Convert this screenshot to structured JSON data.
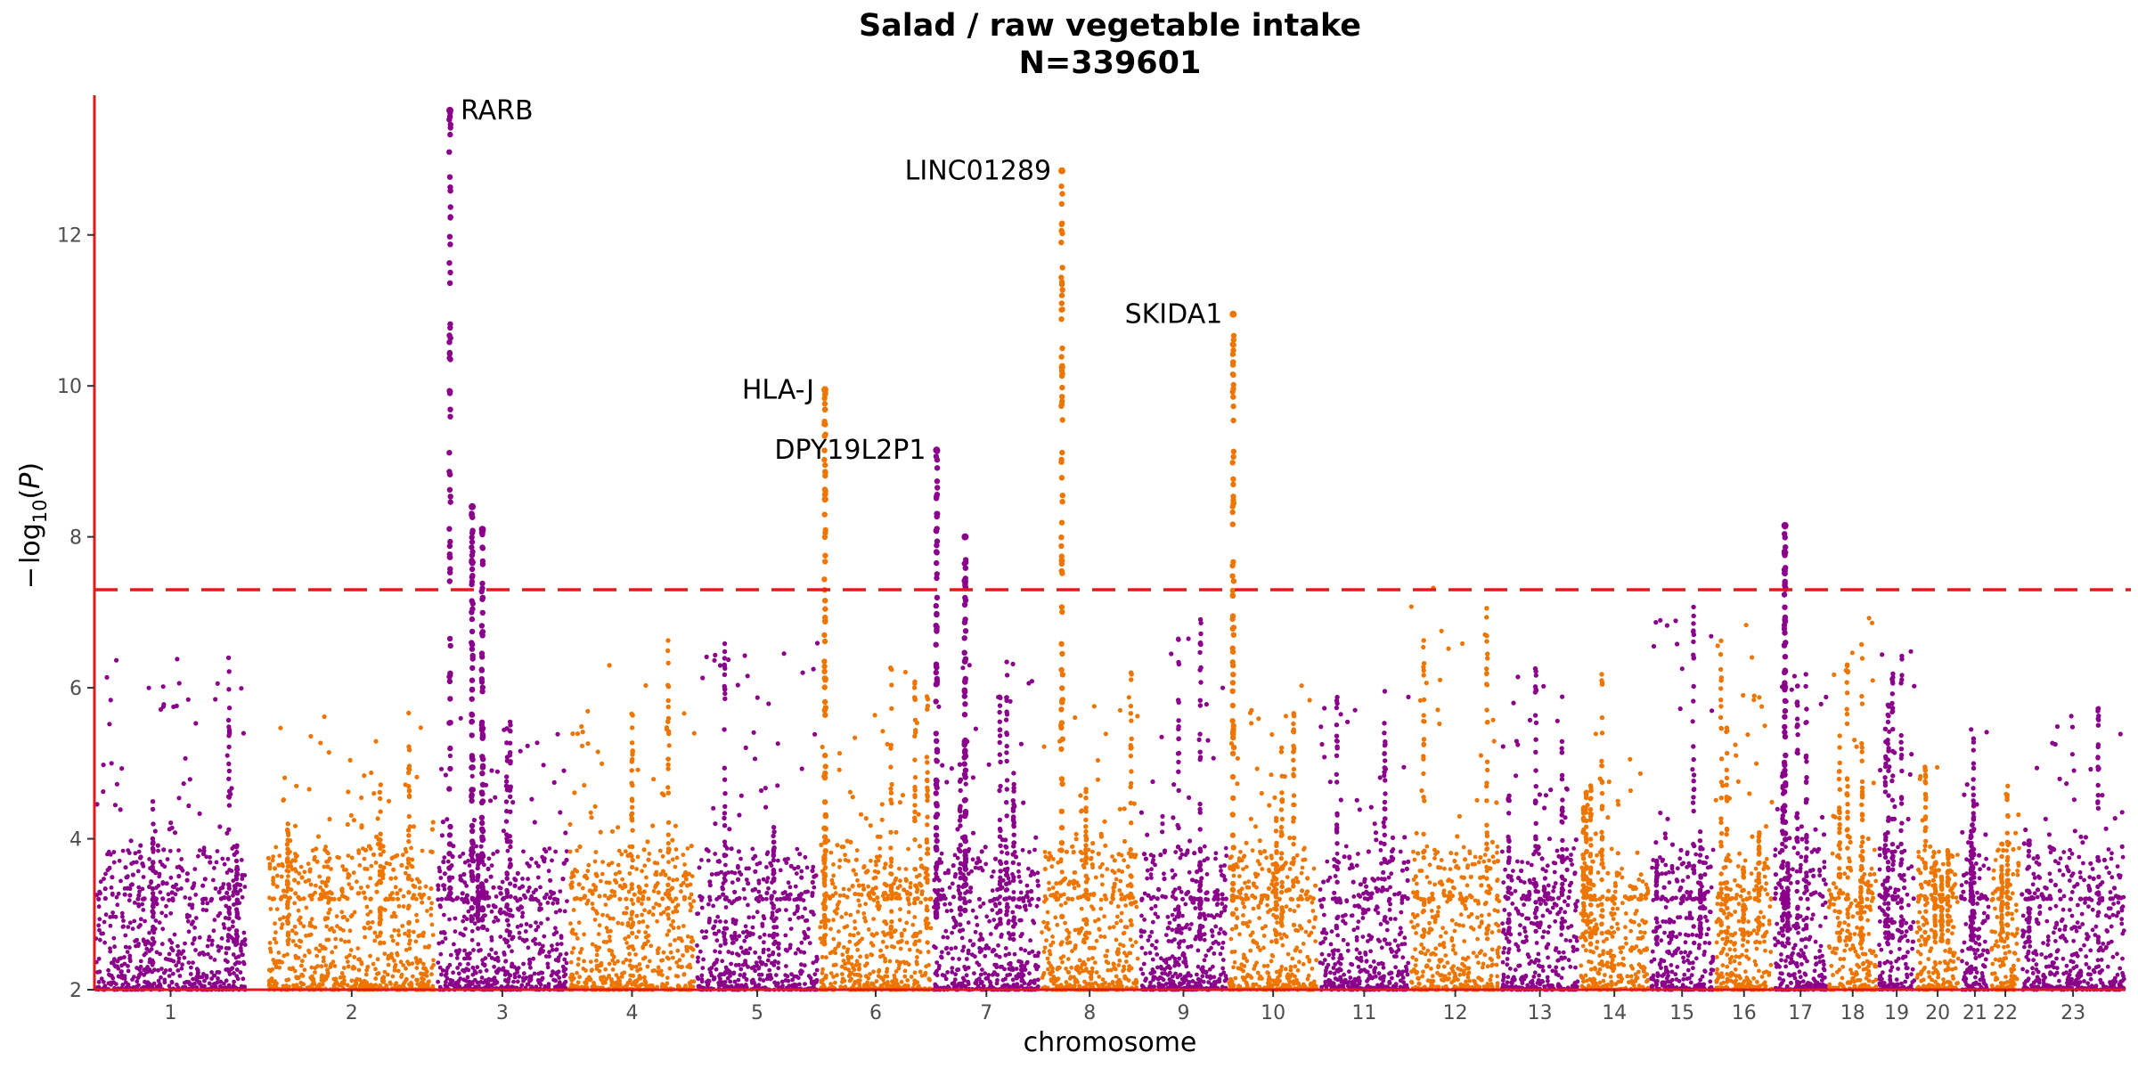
{
  "colors": {
    "odd": "#8B008B",
    "even": "#EE7600",
    "axis": "#e31a1c",
    "threshold": "#e31a1c"
  },
  "chart_data": {
    "type": "scatter",
    "subtype": "manhattan",
    "title": "Salad / raw vegetable intake",
    "subtitle": "N=339601",
    "xlabel": "chromosome",
    "ylabel": "-log10(P)",
    "ylim": [
      2,
      13.85
    ],
    "yticks": [
      2,
      4,
      6,
      8,
      10,
      12
    ],
    "grid": false,
    "legend": "none",
    "significance_threshold": 7.3,
    "chromosomes": [
      {
        "label": "1",
        "start": 0,
        "end": 225,
        "base": 6.4,
        "peaks": []
      },
      {
        "label": "2",
        "start": 255,
        "end": 505,
        "base": 5.7,
        "peaks": []
      },
      {
        "label": "3",
        "start": 505,
        "end": 700,
        "base": 5.6,
        "peaks": [
          {
            "x": 525,
            "y": 13.65
          },
          {
            "x": 558,
            "y": 8.4
          },
          {
            "x": 573,
            "y": 8.1
          }
        ]
      },
      {
        "label": "4",
        "start": 700,
        "end": 888,
        "base": 6.7,
        "peaks": []
      },
      {
        "label": "5",
        "start": 888,
        "end": 1070,
        "base": 6.7,
        "peaks": []
      },
      {
        "label": "6",
        "start": 1070,
        "end": 1238,
        "base": 6.3,
        "peaks": [
          {
            "x": 1079,
            "y": 9.95
          }
        ]
      },
      {
        "label": "7",
        "start": 1238,
        "end": 1397,
        "base": 6.4,
        "peaks": [
          {
            "x": 1244,
            "y": 9.15
          },
          {
            "x": 1286,
            "y": 8.0
          }
        ]
      },
      {
        "label": "8",
        "start": 1397,
        "end": 1543,
        "base": 6.2,
        "peaks": [
          {
            "x": 1429,
            "y": 12.85
          }
        ]
      },
      {
        "label": "9",
        "start": 1543,
        "end": 1674,
        "base": 7.0,
        "peaks": []
      },
      {
        "label": "10",
        "start": 1674,
        "end": 1808,
        "base": 6.1,
        "peaks": [
          {
            "x": 1682,
            "y": 10.95
          }
        ]
      },
      {
        "label": "11",
        "start": 1808,
        "end": 1943,
        "base": 6.0,
        "peaks": []
      },
      {
        "label": "12",
        "start": 1943,
        "end": 2077,
        "base": 7.4,
        "peaks": []
      },
      {
        "label": "13",
        "start": 2077,
        "end": 2193,
        "base": 6.3,
        "peaks": []
      },
      {
        "label": "14",
        "start": 2193,
        "end": 2297,
        "base": 6.2,
        "peaks": []
      },
      {
        "label": "15",
        "start": 2297,
        "end": 2393,
        "base": 7.2,
        "peaks": []
      },
      {
        "label": "16",
        "start": 2393,
        "end": 2480,
        "base": 6.9,
        "peaks": []
      },
      {
        "label": "17",
        "start": 2480,
        "end": 2560,
        "base": 6.2,
        "peaks": [
          {
            "x": 2497,
            "y": 8.15
          }
        ]
      },
      {
        "label": "18",
        "start": 2560,
        "end": 2634,
        "base": 7.05,
        "peaks": []
      },
      {
        "label": "19",
        "start": 2634,
        "end": 2690,
        "base": 6.55,
        "peaks": []
      },
      {
        "label": "20",
        "start": 2690,
        "end": 2755,
        "base": 5.0,
        "peaks": []
      },
      {
        "label": "21",
        "start": 2755,
        "end": 2800,
        "base": 5.45,
        "peaks": []
      },
      {
        "label": "22",
        "start": 2800,
        "end": 2845,
        "base": 4.7,
        "peaks": []
      },
      {
        "label": "23",
        "start": 2845,
        "end": 3000,
        "base": 5.9,
        "peaks": []
      }
    ],
    "annotations": [
      {
        "text": "RARB",
        "x": 525,
        "y": 13.65,
        "anchor": "start"
      },
      {
        "text": "LINC01289",
        "x": 1429,
        "y": 12.85,
        "anchor": "end"
      },
      {
        "text": "SKIDA1",
        "x": 1682,
        "y": 10.95,
        "anchor": "end"
      },
      {
        "text": "HLA-J",
        "x": 1079,
        "y": 9.95,
        "anchor": "end"
      },
      {
        "text": "DPY19L2P1",
        "x": 1244,
        "y": 9.15,
        "anchor": "end"
      }
    ]
  }
}
